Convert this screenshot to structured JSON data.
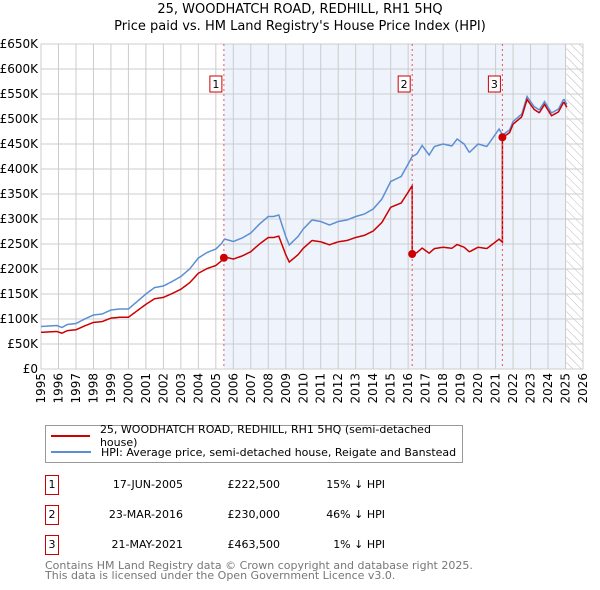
{
  "chart_data": {
    "type": "line",
    "title": "25, WOODHATCH ROAD, REDHILL, RH1 5HQ",
    "subtitle": "Price paid vs. HM Land Registry's House Price Index (HPI)",
    "xlim": [
      1995,
      2026
    ],
    "ylim": [
      0,
      650000
    ],
    "y_ticks": [
      "£0",
      "£50K",
      "£100K",
      "£150K",
      "£200K",
      "£250K",
      "£300K",
      "£350K",
      "£400K",
      "£450K",
      "£500K",
      "£550K",
      "£600K",
      "£650K"
    ],
    "x_ticks": [
      "1995",
      "1996",
      "1997",
      "1998",
      "1999",
      "2000",
      "2001",
      "2002",
      "2003",
      "2004",
      "2005",
      "2006",
      "2007",
      "2008",
      "2009",
      "2010",
      "2011",
      "2012",
      "2013",
      "2014",
      "2015",
      "2016",
      "2017",
      "2018",
      "2019",
      "2020",
      "2021",
      "2022",
      "2023",
      "2024",
      "2025",
      "2026"
    ],
    "grid": true,
    "shaded_from": 2005.46,
    "forecast_hatch_from": 2025.05,
    "series": [
      {
        "name": "25, WOODHATCH ROAD, REDHILL, RH1 5HQ (semi-detached house)",
        "color": "#cc0000",
        "derived_from_sales": true
      },
      {
        "name": "HPI: Average price, semi-detached house, Reigate and Banstead",
        "color": "#5b8fd4",
        "x": [
          1995,
          1995.9,
          1996.2,
          1996.5,
          1997,
          1997.5,
          1998,
          1998.5,
          1999,
          1999.5,
          2000,
          2000.5,
          2001,
          2001.5,
          2002,
          2002.5,
          2003,
          2003.5,
          2004,
          2004.5,
          2005,
          2005.3,
          2005.5,
          2006,
          2006.5,
          2007,
          2007.5,
          2008,
          2008.3,
          2008.6,
          2009,
          2009.2,
          2009.7,
          2010,
          2010.5,
          2011,
          2011.5,
          2012,
          2012.5,
          2013,
          2013.5,
          2014,
          2014.5,
          2015,
          2015.3,
          2015.6,
          2016,
          2016.23,
          2016.5,
          2016.8,
          2017.2,
          2017.5,
          2018,
          2018.5,
          2018.8,
          2019.2,
          2019.5,
          2020,
          2020.5,
          2021,
          2021.2,
          2021.4,
          2021.8,
          2022,
          2022.5,
          2022.8,
          2023.2,
          2023.5,
          2023.8,
          2024.2,
          2024.6,
          2024.9,
          2025.1
        ],
        "y": [
          85000,
          87000,
          83000,
          89000,
          91000,
          100000,
          108000,
          110000,
          118000,
          120000,
          120000,
          135000,
          150000,
          163000,
          166000,
          175000,
          185000,
          200000,
          222000,
          233000,
          240000,
          250000,
          260000,
          255000,
          262000,
          272000,
          290000,
          305000,
          305000,
          308000,
          265000,
          248000,
          265000,
          280000,
          298000,
          295000,
          288000,
          295000,
          298000,
          305000,
          310000,
          320000,
          340000,
          375000,
          380000,
          385000,
          410000,
          425000,
          430000,
          447000,
          428000,
          445000,
          450000,
          446000,
          460000,
          450000,
          433000,
          450000,
          445000,
          470000,
          480000,
          468000,
          478000,
          495000,
          510000,
          545000,
          525000,
          518000,
          535000,
          512000,
          520000,
          540000,
          528000
        ]
      }
    ],
    "sales": [
      {
        "label": "1",
        "x": 2005.46,
        "date": "17-JUN-2005",
        "price": 222500,
        "price_text": "£222,500",
        "hpi_text": "15% ↓ HPI"
      },
      {
        "label": "2",
        "x": 2016.23,
        "date": "23-MAR-2016",
        "price": 230000,
        "price_text": "£230,000",
        "hpi_text": "46% ↓ HPI"
      },
      {
        "label": "3",
        "x": 2021.39,
        "date": "21-MAY-2021",
        "price": 463500,
        "price_text": "£463,500",
        "hpi_text": "1% ↓ HPI"
      }
    ],
    "colors": {
      "property": "#cc0000",
      "hpi": "#5b8fd4",
      "shade": "#eef3fc"
    }
  },
  "legend": {
    "property": "25, WOODHATCH ROAD, REDHILL, RH1 5HQ (semi-detached house)",
    "hpi": "HPI: Average price, semi-detached house, Reigate and Banstead"
  },
  "footer": {
    "line1": "Contains HM Land Registry data © Crown copyright and database right 2025.",
    "line2": "This data is licensed under the Open Government Licence v3.0."
  }
}
